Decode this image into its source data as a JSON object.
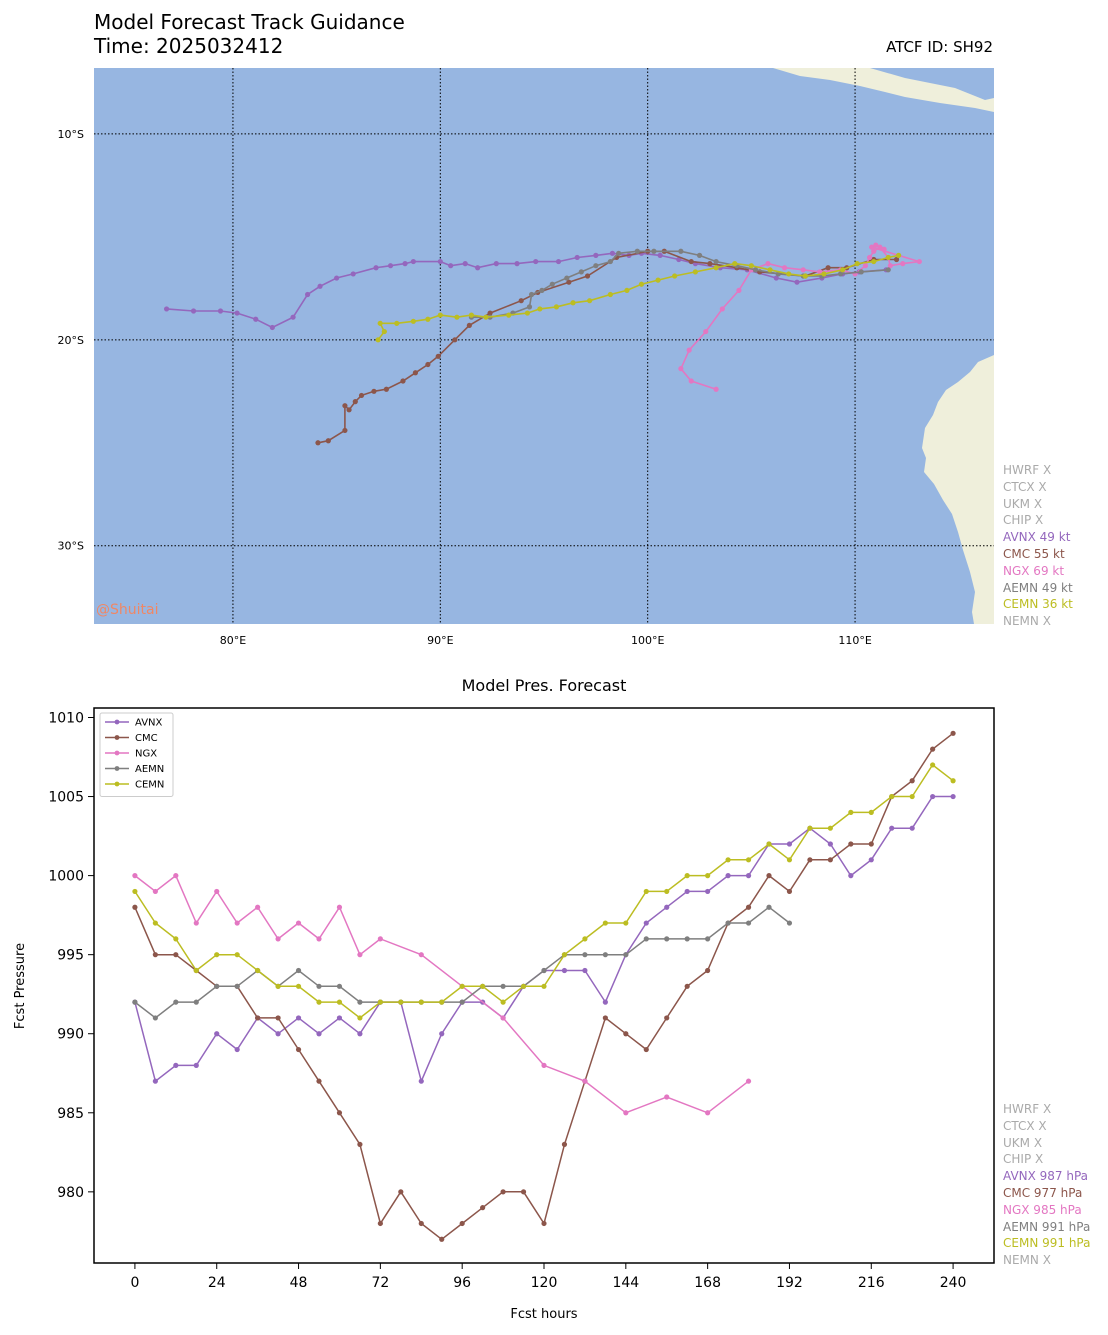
{
  "header": {
    "title": "Model Forecast Track Guidance",
    "time": "Time: 2025032412",
    "atcf": "ATCF ID: SH92"
  },
  "watermark": "@Shuitai",
  "colors": {
    "ocean": "#97b6e1",
    "land": "#efefdb",
    "AVNX": "#9467bd",
    "CMC": "#8c564b",
    "NGX": "#e377c2",
    "AEMN": "#7f7f7f",
    "CEMN": "#bcbd22",
    "inactive": "#aaaaaa"
  },
  "map": {
    "lon_range": [
      73.3,
      116.7
    ],
    "lat_range": [
      -33.8,
      -6.8
    ],
    "lon_ticks": [
      80,
      90,
      100,
      110
    ],
    "lon_tick_labels": [
      "80°E",
      "90°E",
      "100°E",
      "110°E"
    ],
    "lat_ticks": [
      -10,
      -20,
      -30
    ],
    "lat_tick_labels": [
      "10°S",
      "20°S",
      "30°S"
    ],
    "tracks": [
      {
        "model": "AVNX",
        "points": [
          [
            76.8,
            -18.5
          ],
          [
            78.1,
            -18.6
          ],
          [
            79.4,
            -18.6
          ],
          [
            80.2,
            -18.7
          ],
          [
            81.1,
            -19.0
          ],
          [
            81.9,
            -19.4
          ],
          [
            82.9,
            -18.9
          ],
          [
            83.6,
            -17.8
          ],
          [
            84.2,
            -17.4
          ],
          [
            85.0,
            -17.0
          ],
          [
            85.8,
            -16.8
          ],
          [
            86.9,
            -16.5
          ],
          [
            87.6,
            -16.4
          ],
          [
            88.3,
            -16.3
          ],
          [
            88.7,
            -16.2
          ],
          [
            90.0,
            -16.2
          ],
          [
            90.5,
            -16.4
          ],
          [
            91.2,
            -16.3
          ],
          [
            91.8,
            -16.5
          ],
          [
            92.7,
            -16.3
          ],
          [
            93.7,
            -16.3
          ],
          [
            94.6,
            -16.2
          ],
          [
            95.7,
            -16.2
          ],
          [
            96.6,
            -16.0
          ],
          [
            97.5,
            -15.9
          ],
          [
            98.3,
            -15.8
          ],
          [
            99.1,
            -15.9
          ],
          [
            99.7,
            -15.8
          ],
          [
            100.6,
            -15.9
          ],
          [
            101.5,
            -16.1
          ],
          [
            102.3,
            -16.3
          ],
          [
            103.5,
            -16.5
          ],
          [
            104.8,
            -16.6
          ],
          [
            106.2,
            -17.0
          ],
          [
            107.2,
            -17.2
          ],
          [
            108.4,
            -17.0
          ],
          [
            109.4,
            -16.8
          ],
          [
            110.2,
            -16.7
          ],
          [
            111.5,
            -16.6
          ]
        ]
      },
      {
        "model": "CMC",
        "points": [
          [
            84.1,
            -25.0
          ],
          [
            84.6,
            -24.9
          ],
          [
            85.4,
            -24.4
          ],
          [
            85.4,
            -23.2
          ],
          [
            85.6,
            -23.4
          ],
          [
            85.9,
            -23.0
          ],
          [
            86.2,
            -22.7
          ],
          [
            86.8,
            -22.5
          ],
          [
            87.4,
            -22.4
          ],
          [
            88.2,
            -22.0
          ],
          [
            88.8,
            -21.6
          ],
          [
            89.4,
            -21.2
          ],
          [
            89.9,
            -20.8
          ],
          [
            90.7,
            -20.0
          ],
          [
            91.4,
            -19.3
          ],
          [
            92.4,
            -18.7
          ],
          [
            93.9,
            -18.1
          ],
          [
            94.7,
            -17.7
          ],
          [
            96.2,
            -17.2
          ],
          [
            97.1,
            -16.9
          ],
          [
            98.5,
            -16.0
          ],
          [
            100.0,
            -15.7
          ],
          [
            100.8,
            -15.7
          ],
          [
            102.1,
            -16.2
          ],
          [
            103.0,
            -16.3
          ],
          [
            104.3,
            -16.5
          ],
          [
            105.4,
            -16.7
          ],
          [
            107.6,
            -16.9
          ],
          [
            108.7,
            -16.5
          ],
          [
            109.6,
            -16.5
          ],
          [
            110.9,
            -16.1
          ],
          [
            112.0,
            -16.1
          ]
        ]
      },
      {
        "model": "NGX",
        "points": [
          [
            103.3,
            -22.4
          ],
          [
            102.1,
            -22.0
          ],
          [
            101.6,
            -21.4
          ],
          [
            102.0,
            -20.5
          ],
          [
            102.8,
            -19.6
          ],
          [
            103.6,
            -18.5
          ],
          [
            104.4,
            -17.6
          ],
          [
            105.0,
            -16.6
          ],
          [
            105.8,
            -16.3
          ],
          [
            106.6,
            -16.5
          ],
          [
            107.5,
            -16.6
          ],
          [
            108.3,
            -16.7
          ],
          [
            109.3,
            -16.6
          ],
          [
            110.0,
            -16.8
          ],
          [
            110.5,
            -16.4
          ],
          [
            110.7,
            -16.0
          ],
          [
            110.9,
            -15.7
          ],
          [
            111.2,
            -15.5
          ],
          [
            111.6,
            -16.0
          ],
          [
            111.7,
            -16.4
          ],
          [
            112.3,
            -16.3
          ],
          [
            113.1,
            -16.2
          ],
          [
            110.8,
            -15.5
          ],
          [
            111.0,
            -15.4
          ],
          [
            111.4,
            -15.6
          ]
        ]
      },
      {
        "model": "AEMN",
        "points": [
          [
            91.5,
            -18.9
          ],
          [
            92.4,
            -18.9
          ],
          [
            93.5,
            -18.7
          ],
          [
            94.3,
            -18.4
          ],
          [
            94.4,
            -17.8
          ],
          [
            94.9,
            -17.6
          ],
          [
            95.4,
            -17.3
          ],
          [
            96.1,
            -17.0
          ],
          [
            96.8,
            -16.7
          ],
          [
            97.5,
            -16.4
          ],
          [
            98.2,
            -16.2
          ],
          [
            98.6,
            -15.8
          ],
          [
            99.5,
            -15.7
          ],
          [
            100.3,
            -15.7
          ],
          [
            101.6,
            -15.7
          ],
          [
            102.5,
            -15.9
          ],
          [
            103.3,
            -16.2
          ],
          [
            104.3,
            -16.4
          ],
          [
            105.2,
            -16.6
          ],
          [
            106.3,
            -16.8
          ],
          [
            107.5,
            -16.9
          ],
          [
            108.4,
            -16.9
          ],
          [
            109.3,
            -16.8
          ],
          [
            110.3,
            -16.7
          ],
          [
            111.6,
            -16.6
          ]
        ]
      },
      {
        "model": "CEMN",
        "points": [
          [
            87.0,
            -20.0
          ],
          [
            87.3,
            -19.6
          ],
          [
            87.1,
            -19.2
          ],
          [
            87.9,
            -19.2
          ],
          [
            88.7,
            -19.1
          ],
          [
            89.4,
            -19.0
          ],
          [
            90.0,
            -18.8
          ],
          [
            90.8,
            -18.9
          ],
          [
            91.5,
            -18.8
          ],
          [
            92.2,
            -18.9
          ],
          [
            93.3,
            -18.8
          ],
          [
            94.2,
            -18.7
          ],
          [
            94.8,
            -18.5
          ],
          [
            95.6,
            -18.4
          ],
          [
            96.4,
            -18.2
          ],
          [
            97.2,
            -18.1
          ],
          [
            98.2,
            -17.8
          ],
          [
            99.0,
            -17.6
          ],
          [
            99.7,
            -17.3
          ],
          [
            100.5,
            -17.1
          ],
          [
            101.3,
            -16.9
          ],
          [
            102.3,
            -16.7
          ],
          [
            103.3,
            -16.5
          ],
          [
            104.2,
            -16.3
          ],
          [
            105.0,
            -16.4
          ],
          [
            105.9,
            -16.6
          ],
          [
            106.8,
            -16.8
          ],
          [
            107.6,
            -16.9
          ],
          [
            108.5,
            -16.8
          ],
          [
            109.4,
            -16.6
          ],
          [
            110.1,
            -16.3
          ],
          [
            110.9,
            -16.2
          ],
          [
            111.6,
            -16.0
          ],
          [
            112.1,
            -15.9
          ]
        ]
      }
    ],
    "legend_side": [
      {
        "label": "HWRF X",
        "model": "inactive"
      },
      {
        "label": "CTCX X",
        "model": "inactive"
      },
      {
        "label": "UKM X",
        "model": "inactive"
      },
      {
        "label": "CHIP X",
        "model": "inactive"
      },
      {
        "label": "AVNX 49 kt",
        "model": "AVNX"
      },
      {
        "label": "CMC 55 kt",
        "model": "CMC"
      },
      {
        "label": "NGX 69 kt",
        "model": "NGX"
      },
      {
        "label": "AEMN 49 kt",
        "model": "AEMN"
      },
      {
        "label": "CEMN 36 kt",
        "model": "CEMN"
      },
      {
        "label": "NEMN X",
        "model": "inactive"
      }
    ]
  },
  "chart_data": {
    "type": "line",
    "title": "Model Pres. Forecast",
    "xlabel": "Fcst hours",
    "ylabel": "Fcst Pressure",
    "xlim": [
      -12,
      252
    ],
    "ylim": [
      975.5,
      1010.6
    ],
    "xticks": [
      0,
      24,
      48,
      72,
      96,
      120,
      144,
      168,
      192,
      216,
      240
    ],
    "yticks": [
      980,
      985,
      990,
      995,
      1000,
      1005,
      1010
    ],
    "legend_position": "upper-left",
    "series": [
      {
        "name": "AVNX",
        "x": [
          0,
          6,
          12,
          18,
          24,
          30,
          36,
          42,
          48,
          54,
          60,
          66,
          72,
          78,
          84,
          90,
          96,
          102,
          108,
          114,
          120,
          126,
          132,
          138,
          144,
          150,
          156,
          162,
          168,
          174,
          180,
          186,
          192,
          198,
          204,
          210,
          216,
          222,
          228,
          234,
          240
        ],
        "values": [
          992,
          987,
          988,
          988,
          990,
          989,
          991,
          990,
          991,
          990,
          991,
          990,
          992,
          992,
          987,
          990,
          992,
          992,
          991,
          993,
          994,
          994,
          994,
          992,
          995,
          997,
          998,
          999,
          999,
          1000,
          1000,
          1002,
          1002,
          1003,
          1002,
          1000,
          1001,
          1003,
          1003,
          1005,
          1005
        ]
      },
      {
        "name": "CMC",
        "x": [
          0,
          6,
          12,
          18,
          24,
          30,
          36,
          42,
          48,
          54,
          60,
          66,
          72,
          78,
          84,
          90,
          96,
          102,
          108,
          114,
          120,
          126,
          132,
          138,
          144,
          150,
          156,
          162,
          168,
          174,
          180,
          186,
          192,
          198,
          204,
          210,
          216,
          222,
          228,
          234,
          240
        ],
        "values": [
          998,
          995,
          995,
          994,
          993,
          993,
          991,
          991,
          989,
          987,
          985,
          983,
          978,
          980,
          978,
          977,
          978,
          979,
          980,
          980,
          978,
          983,
          987,
          991,
          990,
          989,
          991,
          993,
          994,
          997,
          998,
          1000,
          999,
          1001,
          1001,
          1002,
          1002,
          1005,
          1006,
          1008,
          1009
        ]
      },
      {
        "name": "NGX",
        "x": [
          0,
          6,
          12,
          18,
          24,
          30,
          36,
          42,
          48,
          54,
          60,
          66,
          72,
          84,
          96,
          108,
          120,
          132,
          144,
          156,
          168,
          180
        ],
        "values": [
          1000,
          999,
          1000,
          997,
          999,
          997,
          998,
          996,
          997,
          996,
          998,
          995,
          996,
          995,
          993,
          991,
          988,
          987,
          985,
          986,
          985,
          987
        ]
      },
      {
        "name": "AEMN",
        "x": [
          0,
          6,
          12,
          18,
          24,
          30,
          36,
          42,
          48,
          54,
          60,
          66,
          72,
          78,
          84,
          90,
          96,
          102,
          108,
          114,
          120,
          126,
          132,
          138,
          144,
          150,
          156,
          162,
          168,
          174,
          180,
          186,
          192
        ],
        "values": [
          992,
          991,
          992,
          992,
          993,
          993,
          994,
          993,
          994,
          993,
          993,
          992,
          992,
          992,
          992,
          992,
          992,
          993,
          993,
          993,
          994,
          995,
          995,
          995,
          995,
          996,
          996,
          996,
          996,
          997,
          997,
          998,
          997
        ]
      },
      {
        "name": "CEMN",
        "x": [
          0,
          6,
          12,
          18,
          24,
          30,
          36,
          42,
          48,
          54,
          60,
          66,
          72,
          78,
          84,
          90,
          96,
          102,
          108,
          114,
          120,
          126,
          132,
          138,
          144,
          150,
          156,
          162,
          168,
          174,
          180,
          186,
          192,
          198,
          204,
          210,
          216,
          222,
          228,
          234,
          240
        ],
        "values": [
          999,
          997,
          996,
          994,
          995,
          995,
          994,
          993,
          993,
          992,
          992,
          991,
          992,
          992,
          992,
          992,
          993,
          993,
          992,
          993,
          993,
          995,
          996,
          997,
          997,
          999,
          999,
          1000,
          1000,
          1001,
          1001,
          1002,
          1001,
          1003,
          1003,
          1004,
          1004,
          1005,
          1005,
          1007,
          1006
        ]
      }
    ],
    "legend_side": [
      {
        "label": "HWRF X",
        "model": "inactive"
      },
      {
        "label": "CTCX X",
        "model": "inactive"
      },
      {
        "label": "UKM X",
        "model": "inactive"
      },
      {
        "label": "CHIP X",
        "model": "inactive"
      },
      {
        "label": "AVNX 987 hPa",
        "model": "AVNX"
      },
      {
        "label": "CMC 977 hPa",
        "model": "CMC"
      },
      {
        "label": "NGX 985 hPa",
        "model": "NGX"
      },
      {
        "label": "AEMN 991 hPa",
        "model": "AEMN"
      },
      {
        "label": "CEMN 991 hPa",
        "model": "CEMN"
      },
      {
        "label": "NEMN X",
        "model": "inactive"
      }
    ]
  }
}
